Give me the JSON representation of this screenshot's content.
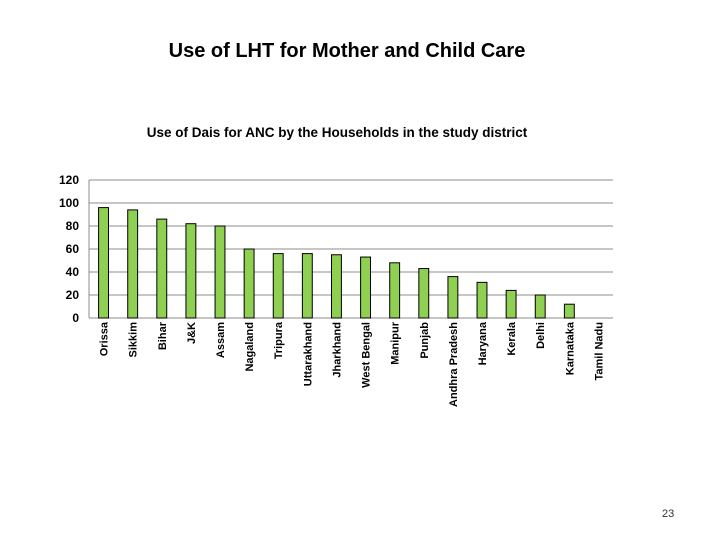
{
  "slide": {
    "title": "Use of LHT for Mother and Child Care",
    "page_number": "23"
  },
  "chart_data": {
    "type": "bar",
    "title": "Use of Dais for ANC by the Households in the study district",
    "xlabel": "",
    "ylabel": "",
    "ylim": [
      0,
      120
    ],
    "yticks": [
      0,
      20,
      40,
      60,
      80,
      100,
      120
    ],
    "grid": true,
    "legend": "none",
    "bar_color": "#8fd052",
    "categories": [
      "Orissa",
      "Sikkim",
      "Bihar",
      "J&K",
      "Assam",
      "Nagaland",
      "Tripura",
      "Uttarakhand",
      "Jharkhand",
      "West Bengal",
      "Manipur",
      "Punjab",
      "Andhra Pradesh",
      "Haryana",
      "Kerala",
      "Delhi",
      "Karnataka",
      "Tamil Nadu"
    ],
    "values": [
      96,
      94,
      86,
      82,
      80,
      60,
      56,
      56,
      55,
      53,
      48,
      43,
      36,
      31,
      24,
      20,
      12,
      0
    ]
  }
}
